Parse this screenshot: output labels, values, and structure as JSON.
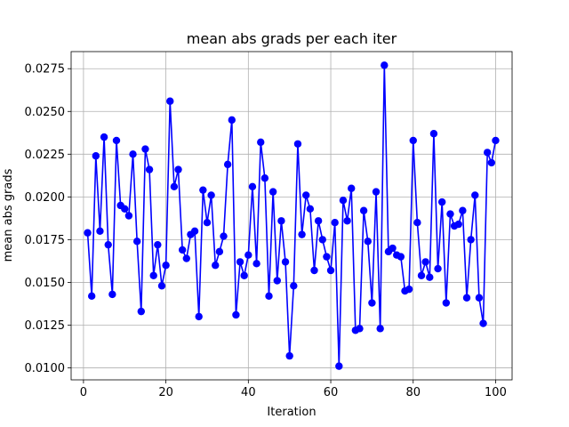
{
  "chart_data": {
    "type": "line",
    "title": "mean abs grads per each iter",
    "xlabel": "Iteration",
    "ylabel": "mean abs grads",
    "xlim": [
      -3,
      104
    ],
    "ylim": [
      0.0093,
      0.0285
    ],
    "xticks": [
      0,
      20,
      40,
      60,
      80,
      100
    ],
    "xtick_labels": [
      "0",
      "20",
      "40",
      "60",
      "80",
      "100"
    ],
    "yticks": [
      0.01,
      0.0125,
      0.015,
      0.0175,
      0.02,
      0.0225,
      0.025,
      0.0275
    ],
    "ytick_labels": [
      "0.0100",
      "0.0125",
      "0.0150",
      "0.0175",
      "0.0200",
      "0.0225",
      "0.0250",
      "0.0275"
    ],
    "grid": true,
    "marker": "circle",
    "color": "#0000ff",
    "x": [
      1,
      2,
      3,
      4,
      5,
      6,
      7,
      8,
      9,
      10,
      11,
      12,
      13,
      14,
      15,
      16,
      17,
      18,
      19,
      20,
      21,
      22,
      23,
      24,
      25,
      26,
      27,
      28,
      29,
      30,
      31,
      32,
      33,
      34,
      35,
      36,
      37,
      38,
      39,
      40,
      41,
      42,
      43,
      44,
      45,
      46,
      47,
      48,
      49,
      50,
      51,
      52,
      53,
      54,
      55,
      56,
      57,
      58,
      59,
      60,
      61,
      62,
      63,
      64,
      65,
      66,
      67,
      68,
      69,
      70,
      71,
      72,
      73,
      74,
      75,
      76,
      77,
      78,
      79,
      80,
      81,
      82,
      83,
      84,
      85,
      86,
      87,
      88,
      89,
      90,
      91,
      92,
      93,
      94,
      95,
      96,
      97,
      98,
      99,
      100
    ],
    "y": [
      0.0179,
      0.0142,
      0.0224,
      0.018,
      0.0235,
      0.0172,
      0.0143,
      0.0233,
      0.0195,
      0.0193,
      0.0189,
      0.0225,
      0.0174,
      0.0133,
      0.0228,
      0.0216,
      0.0154,
      0.0172,
      0.0148,
      0.016,
      0.0256,
      0.0206,
      0.0216,
      0.0169,
      0.0164,
      0.0178,
      0.018,
      0.013,
      0.0204,
      0.0185,
      0.0201,
      0.016,
      0.0168,
      0.0177,
      0.0219,
      0.0245,
      0.0131,
      0.0162,
      0.0154,
      0.0166,
      0.0206,
      0.0161,
      0.0232,
      0.0211,
      0.0142,
      0.0203,
      0.0151,
      0.0186,
      0.0162,
      0.0107,
      0.0148,
      0.0231,
      0.0178,
      0.0201,
      0.0193,
      0.0157,
      0.0186,
      0.0175,
      0.0165,
      0.0157,
      0.0185,
      0.0101,
      0.0198,
      0.0186,
      0.0205,
      0.0122,
      0.0123,
      0.0192,
      0.0174,
      0.0138,
      0.0203,
      0.0123,
      0.0277,
      0.0168,
      0.017,
      0.0166,
      0.0165,
      0.0145,
      0.0146,
      0.0233,
      0.0185,
      0.0154,
      0.0162,
      0.0153,
      0.0237,
      0.0158,
      0.0197,
      0.0138,
      0.019,
      0.0183,
      0.0184,
      0.0192,
      0.0141,
      0.0175,
      0.0201,
      0.0141,
      0.0126,
      0.0226,
      0.022,
      0.0233
    ]
  }
}
